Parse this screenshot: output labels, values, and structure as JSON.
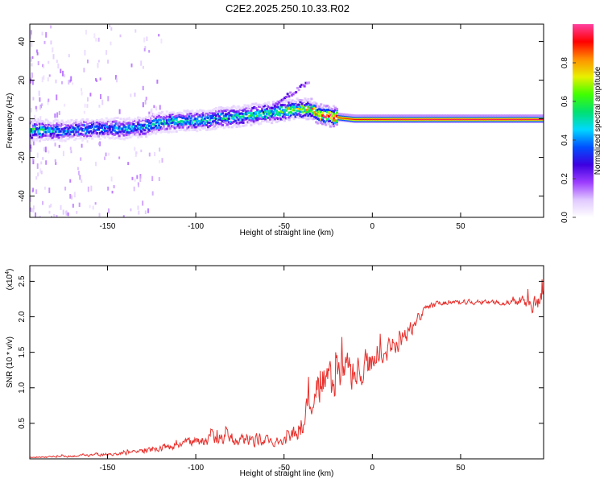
{
  "title": "C2E2.2025.250.10.33.R02",
  "colors": {
    "snr_line": "#e8302c",
    "axis": "#000000",
    "colormap": [
      "#ffffff",
      "#e0c8ff",
      "#9c3cff",
      "#3c00e0",
      "#0050ff",
      "#00d8ff",
      "#00e070",
      "#40ff00",
      "#e8f000",
      "#ff9000",
      "#ff0000",
      "#ff40a0"
    ]
  },
  "chart_data": [
    {
      "type": "heatmap",
      "name": "spectrogram",
      "xlabel": "Height of straight line (km)",
      "ylabel": "Frequency (Hz)",
      "xlim": [
        -194,
        97
      ],
      "ylim": [
        -51,
        49
      ],
      "xticks": [
        -150,
        -100,
        -50,
        0,
        50
      ],
      "xtick_labels": [
        "-150",
        "-100",
        "-50",
        "0",
        "50"
      ],
      "yticks": [
        -40,
        -20,
        0,
        20,
        40
      ],
      "ytick_labels": [
        "-40",
        "-20",
        "0",
        "20",
        "40"
      ],
      "ridge": {
        "x": [
          -194,
          -180,
          -170,
          -160,
          -150,
          -140,
          -130,
          -120,
          -110,
          -100,
          -90,
          -80,
          -70,
          -60,
          -50,
          -45,
          -40,
          -35,
          -30,
          -20,
          -10,
          0,
          20,
          50,
          97
        ],
        "freq": [
          -6,
          -6,
          -6,
          -5,
          -5,
          -5,
          -4,
          -2,
          -1,
          -1,
          0,
          1,
          2,
          3,
          4,
          5,
          5,
          5,
          2,
          1,
          0,
          0,
          0,
          0,
          0
        ],
        "amplitude": [
          0.55,
          0.45,
          0.4,
          0.42,
          0.4,
          0.42,
          0.45,
          0.45,
          0.48,
          0.5,
          0.45,
          0.5,
          0.55,
          0.55,
          0.6,
          0.7,
          0.72,
          0.72,
          0.85,
          0.88,
          0.9,
          0.92,
          0.95,
          0.95,
          0.95
        ]
      },
      "side_feature": {
        "x": [
          -57,
          -52,
          -48,
          -44,
          -40,
          -36
        ],
        "freq": [
          6,
          9,
          12,
          14,
          17,
          19
        ]
      }
    },
    {
      "type": "colorbar",
      "label": "Normalized spectral amplitude",
      "range": [
        0,
        1
      ],
      "ticks": [
        0.0,
        0.2,
        0.4,
        0.6,
        0.8
      ],
      "tick_labels": [
        "0.0",
        "0.2",
        "0.4",
        "0.6",
        "0.8"
      ]
    },
    {
      "type": "line",
      "name": "snr",
      "xlabel": "Height of straight line (km)",
      "ylabel": "SNR (10 * v/v)",
      "y_multiplier_label": "(x10",
      "y_multiplier_exponent": "4",
      "y_multiplier_close": ")",
      "xlim": [
        -194,
        97
      ],
      "ylim": [
        0,
        2.72
      ],
      "xticks": [
        -150,
        -100,
        -50,
        0,
        50
      ],
      "xtick_labels": [
        "-150",
        "-100",
        "-50",
        "0",
        "50"
      ],
      "yticks": [
        0.5,
        1.0,
        1.5,
        2.0,
        2.5
      ],
      "ytick_labels": [
        "0.5",
        "1.0",
        "1.5",
        "2.0",
        "2.5"
      ],
      "series": [
        {
          "name": "SNR",
          "x": [
            -194,
            -180,
            -160,
            -140,
            -125,
            -115,
            -105,
            -95,
            -88,
            -80,
            -72,
            -65,
            -58,
            -52,
            -46,
            -42,
            -38,
            -35,
            -32,
            -28,
            -24,
            -20,
            -16,
            -12,
            -8,
            -4,
            0,
            4,
            8,
            12,
            16,
            20,
            24,
            28,
            32,
            40,
            50,
            60,
            70,
            80,
            85,
            90,
            97
          ],
          "values": [
            0.02,
            0.03,
            0.05,
            0.08,
            0.12,
            0.18,
            0.22,
            0.26,
            0.3,
            0.28,
            0.27,
            0.28,
            0.25,
            0.22,
            0.3,
            0.45,
            0.6,
            0.75,
            0.9,
            1.05,
            1.12,
            1.15,
            1.18,
            1.2,
            1.22,
            1.28,
            1.35,
            1.45,
            1.55,
            1.62,
            1.68,
            1.78,
            1.92,
            2.05,
            2.15,
            2.2,
            2.2,
            2.21,
            2.2,
            2.2,
            2.22,
            2.22,
            2.2
          ],
          "noise": [
            0.01,
            0.02,
            0.03,
            0.04,
            0.06,
            0.08,
            0.1,
            0.12,
            0.16,
            0.15,
            0.13,
            0.14,
            0.12,
            0.1,
            0.16,
            0.25,
            0.32,
            0.4,
            0.45,
            0.5,
            0.5,
            0.45,
            0.42,
            0.38,
            0.35,
            0.3,
            0.28,
            0.26,
            0.24,
            0.22,
            0.2,
            0.18,
            0.14,
            0.1,
            0.08,
            0.06,
            0.05,
            0.05,
            0.05,
            0.06,
            0.12,
            0.22,
            0.25
          ]
        }
      ]
    }
  ]
}
